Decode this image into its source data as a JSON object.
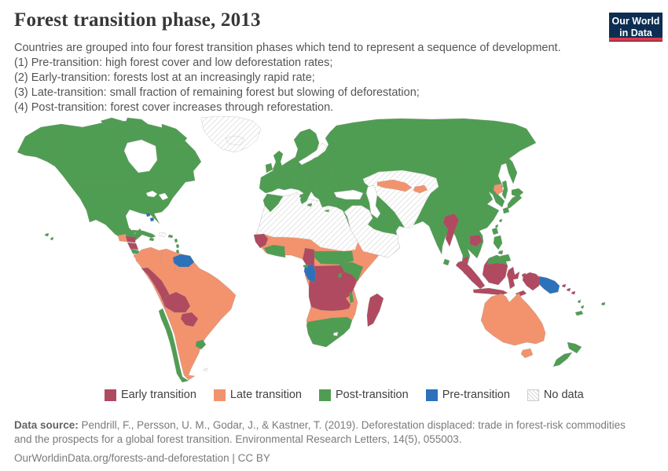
{
  "header": {
    "title": "Forest transition phase, 2013",
    "subtitle_lines": [
      "Countries are grouped into four forest transition phases which tend to represent a sequence of development.",
      "(1) Pre-transition: high forest cover and low deforestation rates;",
      "(2) Early-transition: forests lost at an increasingly rapid rate;",
      "(3) Late-transition: small fraction of remaining forest but slowing of deforestation;",
      "(4) Post-transition: forest cover increases through reforestation."
    ]
  },
  "logo": {
    "line1": "Our World",
    "line2": "in Data",
    "bg_color": "#0d2e52",
    "stripe_color": "#d93a4d"
  },
  "legend": {
    "items": [
      {
        "label": "Early transition",
        "category": "early"
      },
      {
        "label": "Late transition",
        "category": "late"
      },
      {
        "label": "Post-transition",
        "category": "post"
      },
      {
        "label": "Pre-transition",
        "category": "pre"
      },
      {
        "label": "No data",
        "category": "nodata"
      }
    ]
  },
  "palette": {
    "early": "#b04a60",
    "late": "#f2936e",
    "post": "#4f9d52",
    "pre": "#2d71bb",
    "sea": "#ffffff",
    "border": "#8a8a8a",
    "nodata_line": "#d6d6d6",
    "nodata_border": "#c9c9c9"
  },
  "footer": {
    "source_label": "Data source:",
    "source_text": "Pendrill, F., Persson, U. M., Godar, J., & Kastner, T. (2019). Deforestation displaced: trade in forest-risk commodities and the prospects for a global forest transition. Environmental Research Letters, 14(5), 055003.",
    "link_text": "OurWorldinData.org/forests-and-deforestation | CC BY"
  },
  "chart_data": {
    "type": "choropleth_map",
    "title": "Forest transition phase, 2013",
    "year": 2013,
    "legend_position": "bottom",
    "categories": [
      "Early transition",
      "Late transition",
      "Post-transition",
      "Pre-transition",
      "No data"
    ],
    "assignments": {
      "Early transition": [
        "Honduras",
        "Nicaragua",
        "Peru",
        "Bolivia",
        "Paraguay",
        "Guinea",
        "Cameroon",
        "Democratic Republic of Congo",
        "Angola",
        "Zambia",
        "Tanzania",
        "Madagascar",
        "Myanmar",
        "Cambodia",
        "Malaysia",
        "Indonesia",
        "Timor",
        "Solomon Islands"
      ],
      "Late transition": [
        "Guatemala",
        "Panama",
        "Colombia",
        "Venezuela",
        "Ecuador",
        "Brazil",
        "Argentina",
        "Sierra Leone",
        "Burkina Faso",
        "Togo",
        "Benin",
        "Nigeria",
        "Eritrea",
        "Ethiopia",
        "Somalia",
        "Namibia",
        "Botswana",
        "Zimbabwe",
        "Mozambique",
        "Uzbekistan",
        "Kyrgyzstan",
        "North Korea",
        "Australia"
      ],
      "Post-transition": [
        "Canada",
        "United States",
        "Mexico",
        "Costa Rica",
        "Cuba",
        "Chile",
        "Uruguay",
        "Europe",
        "Russia",
        "Turkey",
        "Iran",
        "Morocco",
        "Liberia",
        "Cote d'Ivoire",
        "Ghana",
        "Central African Republic",
        "South Sudan",
        "Uganda",
        "Kenya",
        "Rwanda",
        "Burundi",
        "Malawi",
        "South Africa",
        "India",
        "Sri Lanka",
        "China",
        "Mongolia",
        "South Korea",
        "Japan",
        "Thailand",
        "Laos",
        "Vietnam",
        "Philippines",
        "Taiwan",
        "New Zealand",
        "Fiji",
        "Vanuatu",
        "New Caledonia"
      ],
      "Pre-transition": [
        "Guyana",
        "Suriname",
        "French Guiana",
        "Bahamas",
        "Gabon",
        "Republic of Congo",
        "Papua New Guinea"
      ],
      "No data": [
        "Greenland",
        "Iceland",
        "Western Sahara",
        "Mauritania",
        "Mali",
        "Niger",
        "Chad",
        "Sudan",
        "Algeria",
        "Libya",
        "Tunisia",
        "Egypt",
        "Saudi Arabia",
        "Yemen",
        "Oman",
        "Jordan",
        "Syria",
        "Iraq",
        "Kazakhstan",
        "Turkmenistan",
        "Tajikistan",
        "Afghanistan",
        "Pakistan",
        "Haiti",
        "Dominican Republic",
        "Falkland Islands"
      ]
    }
  },
  "map": {
    "regions": [
      {
        "name": "na-mainland",
        "category": "post"
      },
      {
        "name": "arctic-island-west",
        "category": "post"
      },
      {
        "name": "arctic-island-mid",
        "category": "post"
      },
      {
        "name": "victoria-island",
        "category": "post"
      },
      {
        "name": "baffin-island",
        "category": "post"
      },
      {
        "name": "hudson-bay",
        "category": "sea"
      },
      {
        "name": "great-lakes-west",
        "category": "sea"
      },
      {
        "name": "great-lakes-east",
        "category": "sea"
      },
      {
        "name": "greenland",
        "category": "nodata"
      },
      {
        "name": "iceland",
        "category": "nodata"
      },
      {
        "name": "guatemala",
        "category": "late"
      },
      {
        "name": "honduras",
        "category": "early"
      },
      {
        "name": "nicaragua",
        "category": "early"
      },
      {
        "name": "costa-rica",
        "category": "post"
      },
      {
        "name": "panama",
        "category": "late"
      },
      {
        "name": "cuba",
        "category": "post"
      },
      {
        "name": "hispaniola",
        "category": "nodata"
      },
      {
        "name": "jamaica",
        "category": "post"
      },
      {
        "name": "puerto-rico",
        "category": "post"
      },
      {
        "name": "bahamas-1",
        "category": "pre"
      },
      {
        "name": "bahamas-2",
        "category": "pre"
      },
      {
        "name": "lesser-antilles-1",
        "category": "post"
      },
      {
        "name": "lesser-antilles-2",
        "category": "post"
      },
      {
        "name": "trinidad",
        "category": "post"
      },
      {
        "name": "hawaii-1",
        "category": "post"
      },
      {
        "name": "hawaii-2",
        "category": "post"
      },
      {
        "name": "south-america",
        "category": "late"
      },
      {
        "name": "guyanas",
        "category": "pre"
      },
      {
        "name": "peru",
        "category": "early"
      },
      {
        "name": "bolivia",
        "category": "early"
      },
      {
        "name": "paraguay",
        "category": "early"
      },
      {
        "name": "chile",
        "category": "post"
      },
      {
        "name": "uruguay",
        "category": "post"
      },
      {
        "name": "falkland-islands",
        "category": "nodata"
      },
      {
        "name": "africa",
        "category": "late"
      },
      {
        "name": "sahara",
        "category": "nodata"
      },
      {
        "name": "morocco",
        "category": "post"
      },
      {
        "name": "senegal-guinea",
        "category": "early"
      },
      {
        "name": "liberia-ghana",
        "category": "post"
      },
      {
        "name": "cameroon",
        "category": "early"
      },
      {
        "name": "car-south-sudan",
        "category": "post"
      },
      {
        "name": "uganda-kenya",
        "category": "post"
      },
      {
        "name": "drc-angola-zambia-tanzania",
        "category": "early"
      },
      {
        "name": "gabon-congo",
        "category": "pre"
      },
      {
        "name": "equatorial-guinea",
        "category": "post"
      },
      {
        "name": "rwanda-burundi",
        "category": "post"
      },
      {
        "name": "malawi",
        "category": "post"
      },
      {
        "name": "south-africa",
        "category": "post"
      },
      {
        "name": "lesotho",
        "category": "sea"
      },
      {
        "name": "madagascar",
        "category": "early"
      },
      {
        "name": "eurasia",
        "category": "post"
      },
      {
        "name": "scandinavia",
        "category": "post"
      },
      {
        "name": "denmark",
        "category": "post"
      },
      {
        "name": "uk",
        "category": "post"
      },
      {
        "name": "ireland",
        "category": "post"
      },
      {
        "name": "baltic-sea",
        "category": "sea"
      },
      {
        "name": "central-asia",
        "category": "nodata"
      },
      {
        "name": "middle-east",
        "category": "nodata"
      },
      {
        "name": "black-sea",
        "category": "sea"
      },
      {
        "name": "caspian-sea",
        "category": "sea"
      },
      {
        "name": "aral-sea",
        "category": "sea"
      },
      {
        "name": "uzbekistan",
        "category": "late"
      },
      {
        "name": "kyrgyzstan",
        "category": "late"
      },
      {
        "name": "sardinia",
        "category": "post"
      },
      {
        "name": "sicily",
        "category": "post"
      },
      {
        "name": "crete",
        "category": "post"
      },
      {
        "name": "myanmar",
        "category": "early"
      },
      {
        "name": "cambodia",
        "category": "early"
      },
      {
        "name": "malaysia-peninsular",
        "category": "early"
      },
      {
        "name": "north-korea",
        "category": "late"
      },
      {
        "name": "sri-lanka",
        "category": "post"
      },
      {
        "name": "sakhalin",
        "category": "post"
      },
      {
        "name": "hokkaido",
        "category": "post"
      },
      {
        "name": "honshu",
        "category": "post"
      },
      {
        "name": "kyushu",
        "category": "post"
      },
      {
        "name": "ryukyu-1",
        "category": "post"
      },
      {
        "name": "ryukyu-2",
        "category": "post"
      },
      {
        "name": "taiwan",
        "category": "post"
      },
      {
        "name": "luzon",
        "category": "post"
      },
      {
        "name": "visayas",
        "category": "post"
      },
      {
        "name": "mindanao",
        "category": "post"
      },
      {
        "name": "sumatra",
        "category": "early"
      },
      {
        "name": "java",
        "category": "early"
      },
      {
        "name": "borneo",
        "category": "early"
      },
      {
        "name": "borneo-malaysia",
        "category": "post"
      },
      {
        "name": "sulawesi",
        "category": "early"
      },
      {
        "name": "moluccas-1",
        "category": "early"
      },
      {
        "name": "moluccas-2",
        "category": "early"
      },
      {
        "name": "timor",
        "category": "early"
      },
      {
        "name": "west-papua",
        "category": "early"
      },
      {
        "name": "papua-new-guinea",
        "category": "pre"
      },
      {
        "name": "solomons-1",
        "category": "early"
      },
      {
        "name": "solomons-2",
        "category": "early"
      },
      {
        "name": "solomons-3",
        "category": "early"
      },
      {
        "name": "australia",
        "category": "late"
      },
      {
        "name": "tasmania",
        "category": "late"
      },
      {
        "name": "new-zealand-north",
        "category": "post"
      },
      {
        "name": "new-zealand-south",
        "category": "post"
      },
      {
        "name": "fiji",
        "category": "post"
      },
      {
        "name": "vanuatu-1",
        "category": "post"
      },
      {
        "name": "vanuatu-2",
        "category": "post"
      },
      {
        "name": "new-caledonia",
        "category": "post"
      }
    ]
  }
}
